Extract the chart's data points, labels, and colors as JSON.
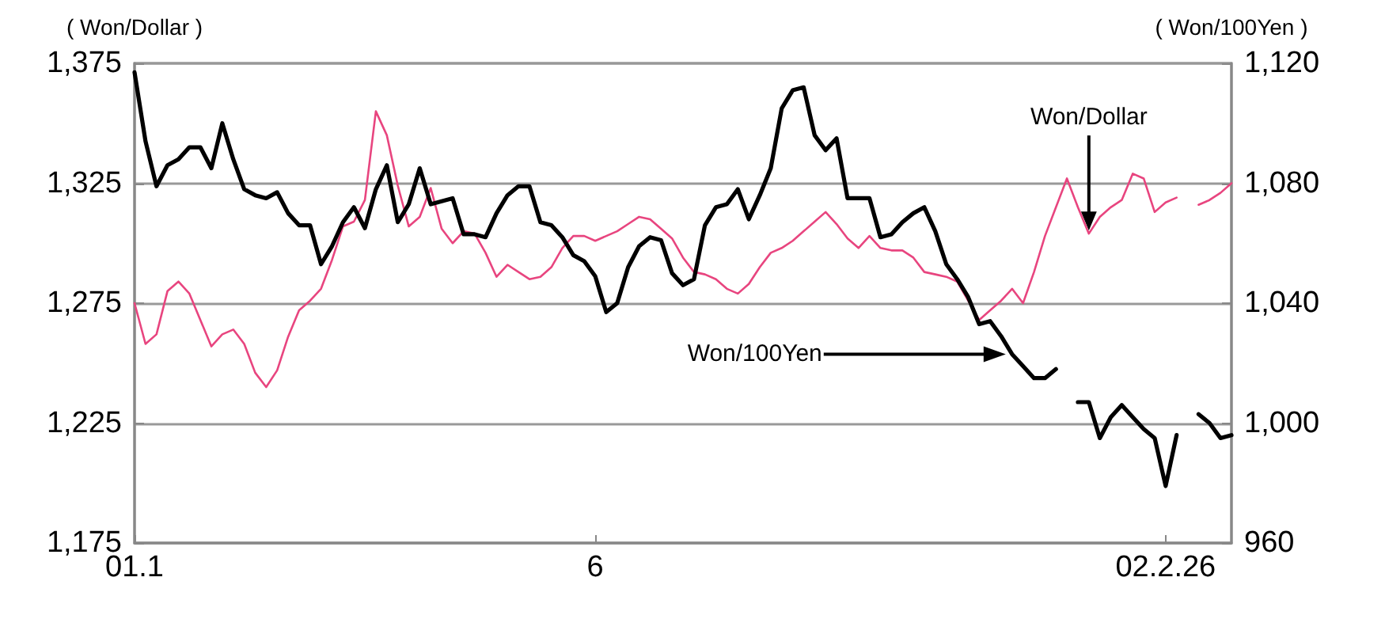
{
  "chart_data": {
    "type": "line",
    "ylabel": "( Won/Dollar )",
    "y2label": "( Won/100Yen )",
    "categories": [
      "01.1",
      null,
      null,
      null,
      null,
      null,
      null,
      null,
      null,
      null,
      null,
      null,
      null,
      null,
      null,
      null,
      null,
      null,
      null,
      null,
      null,
      null,
      null,
      null,
      null,
      null,
      null,
      null,
      null,
      null,
      null,
      null,
      null,
      null,
      null,
      null,
      null,
      null,
      null,
      null,
      null,
      null,
      "6",
      null,
      null,
      null,
      null,
      null,
      null,
      null,
      null,
      null,
      null,
      null,
      null,
      null,
      null,
      null,
      null,
      null,
      null,
      null,
      null,
      null,
      null,
      null,
      null,
      null,
      null,
      null,
      null,
      null,
      null,
      null,
      null,
      null,
      null,
      null,
      null,
      null,
      null,
      null,
      null,
      null,
      null,
      null,
      null,
      null,
      null,
      null,
      null,
      null,
      null,
      null,
      "02.2.26",
      null,
      null,
      null,
      null,
      null,
      null
    ],
    "ylim": [
      1175,
      1375
    ],
    "yticks": [
      {
        "value": 1175,
        "label": "1,175"
      },
      {
        "value": 1225,
        "label": "1,225"
      },
      {
        "value": 1275,
        "label": "1,275"
      },
      {
        "value": 1325,
        "label": "1,325"
      },
      {
        "value": 1375,
        "label": "1,375"
      }
    ],
    "y2lim": [
      960,
      1120
    ],
    "y2ticks": [
      960,
      {
        "value": 1000,
        "label": "1,000"
      },
      {
        "value": 1040,
        "label": "1,040"
      },
      {
        "value": 1080,
        "label": "1,080"
      },
      {
        "value": 1120,
        "label": "1,120"
      }
    ],
    "grid": "y",
    "legend": false,
    "marker": "none",
    "line_style": "solid",
    "series": [
      {
        "name": "Won/Dollar",
        "color": "#e8457f",
        "values": [
          1275,
          1258,
          1262,
          1280,
          1284,
          1279,
          1268,
          1257,
          1262,
          1264,
          1258,
          1246,
          1240,
          1247,
          1261,
          1272,
          1276,
          1281,
          1293,
          1307,
          1309,
          1318,
          1355,
          1345,
          1324,
          1307,
          1311,
          1323,
          1306,
          1300,
          1305,
          1304,
          1296,
          1286,
          1291,
          1288,
          1285,
          1286,
          1290,
          1298,
          1303,
          1303,
          1301,
          1303,
          1305,
          1308,
          1311,
          1310,
          1306,
          1302,
          1294,
          1288,
          1287,
          1285,
          1281,
          1279,
          1283,
          1290,
          1296,
          1298,
          1301,
          1305,
          1309,
          1313,
          1308,
          1302,
          1298,
          1303,
          1298,
          1297,
          1297,
          1294,
          1288,
          1287,
          1286,
          1284,
          1276,
          1268,
          1272,
          1276,
          1281,
          1275,
          1288,
          1303,
          1315,
          1327,
          1315,
          1304,
          1311,
          1315,
          1318,
          1329,
          1327,
          1313,
          1317,
          1319,
          null,
          1316,
          1318,
          1321,
          1325
        ]
      },
      {
        "name": "Won/100Yen",
        "color": "#000000",
        "axis": "y2",
        "values": [
          1117,
          1094,
          1079,
          1086,
          1088,
          1092,
          1092,
          1085,
          1100,
          1088,
          1078,
          1076,
          1075,
          1077,
          1070,
          1066,
          1066,
          1053,
          1059,
          1067,
          1072,
          1065,
          1078,
          1086,
          1067,
          1073,
          1085,
          1073,
          1074,
          1075,
          1063,
          1063,
          1062,
          1070,
          1076,
          1079,
          1079,
          1067,
          1066,
          1062,
          1056,
          1054,
          1049,
          1037,
          1040,
          1052,
          1059,
          1062,
          1061,
          1050,
          1046,
          1048,
          1066,
          1072,
          1073,
          1078,
          1068,
          1076,
          1085,
          1105,
          1111,
          1112,
          1096,
          1091,
          1095,
          1075,
          1075,
          1075,
          1062,
          1063,
          1067,
          1070,
          1072,
          1064,
          1053,
          1048,
          1042,
          1033,
          1034,
          1029,
          1023,
          1019,
          1015,
          1015,
          1018,
          null,
          1007,
          1007,
          995,
          1002,
          1006,
          1002,
          998,
          995,
          979,
          996,
          null,
          1003,
          1000,
          995,
          996
        ]
      }
    ]
  }
}
